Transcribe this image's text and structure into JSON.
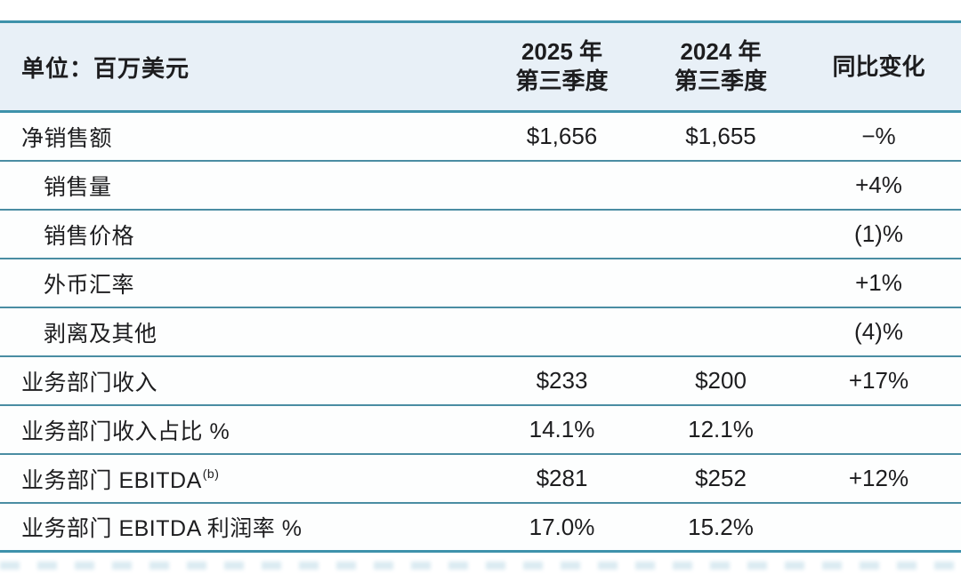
{
  "colors": {
    "header_bg": "#E8F0F7",
    "rule_strong": "#3E92AB",
    "rule_row": "#4A8DA3",
    "text": "#1D1D1F"
  },
  "table": {
    "unit_label": "单位：百万美元",
    "col_2025": {
      "line1": "2025 年",
      "line2": "第三季度"
    },
    "col_2024": {
      "line1": "2024 年",
      "line2": "第三季度"
    },
    "col_yoy": "同比变化",
    "rows": [
      {
        "label": "净销售额",
        "q3_2025": "$1,656",
        "q3_2024": "$1,655",
        "yoy": "−%"
      },
      {
        "label": "销售量",
        "q3_2025": "",
        "q3_2024": "",
        "yoy": "+4%"
      },
      {
        "label": "销售价格",
        "q3_2025": "",
        "q3_2024": "",
        "yoy": "(1)%"
      },
      {
        "label": "外币汇率",
        "q3_2025": "",
        "q3_2024": "",
        "yoy": "+1%"
      },
      {
        "label": "剥离及其他",
        "q3_2025": "",
        "q3_2024": "",
        "yoy": "(4)%"
      },
      {
        "label": "业务部门收入",
        "q3_2025": "$233",
        "q3_2024": "$200",
        "yoy": "+17%"
      },
      {
        "label": "业务部门收入占比 %",
        "q3_2025": "14.1%",
        "q3_2024": "12.1%",
        "yoy": ""
      },
      {
        "label": "业务部门 EBITDA",
        "sup": "(b)",
        "q3_2025": "$281",
        "q3_2024": "$252",
        "yoy": "+12%"
      },
      {
        "label": "业务部门 EBITDA 利润率 %",
        "q3_2025": "17.0%",
        "q3_2024": "15.2%",
        "yoy": ""
      }
    ]
  },
  "chart_data": {
    "type": "table",
    "title": "单位：百万美元",
    "columns": [
      "单位：百万美元",
      "2025 年 第三季度",
      "2024 年 第三季度",
      "同比变化"
    ],
    "rows": [
      [
        "净销售额",
        "$1,656",
        "$1,655",
        "−%"
      ],
      [
        "销售量",
        "",
        "",
        "+4%"
      ],
      [
        "销售价格",
        "",
        "",
        "(1)%"
      ],
      [
        "外币汇率",
        "",
        "",
        "+1%"
      ],
      [
        "剥离及其他",
        "",
        "",
        "(4)%"
      ],
      [
        "业务部门收入",
        "$233",
        "$200",
        "+17%"
      ],
      [
        "业务部门收入占比 %",
        "14.1%",
        "12.1%",
        ""
      ],
      [
        "业务部门 EBITDA(b)",
        "$281",
        "$252",
        "+12%"
      ],
      [
        "业务部门 EBITDA 利润率 %",
        "17.0%",
        "15.2%",
        ""
      ]
    ],
    "notes": "Indented sub-rows (销售量, 销售价格, 外币汇率, 剥离及其他) are drivers of 净销售额 change; footnote marker (b) on 业务部门 EBITDA"
  }
}
